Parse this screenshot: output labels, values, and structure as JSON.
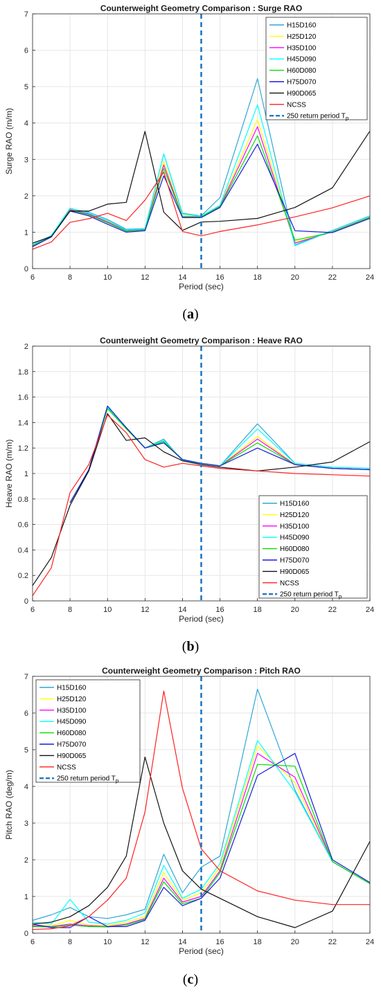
{
  "series_colors": {
    "H15D160": "#2ea7d6",
    "H25D120": "#ffff00",
    "H35D100": "#ff00ff",
    "H45D090": "#00ffff",
    "H60D080": "#00e000",
    "H75D070": "#1a1adc",
    "H90D065": "#111111",
    "NCSS": "#ff2020"
  },
  "reference_line": {
    "x": 15,
    "color": "#1f77c4"
  },
  "chart_data": [
    {
      "type": "line",
      "panel_label": "(a)",
      "title": "Counterweight Geometry Comparison : Surge RAO",
      "xlabel": "Period (sec)",
      "ylabel": "Surge RAO (m/m)",
      "xlim": [
        6,
        24
      ],
      "ylim": [
        0,
        7
      ],
      "xticks": [
        6,
        8,
        10,
        12,
        14,
        16,
        18,
        20,
        22,
        24
      ],
      "yticks": [
        0,
        1,
        2,
        3,
        4,
        5,
        6,
        7
      ],
      "legend_position": "top-right",
      "grid": true,
      "reference_label": "250 return period T",
      "reference_label_sub": "p",
      "series": [
        {
          "name": "H15D160",
          "x": [
            6,
            7,
            8,
            9,
            10,
            11,
            12,
            13,
            14,
            15,
            16,
            18,
            20,
            22,
            24
          ],
          "y": [
            0.65,
            0.9,
            1.65,
            1.55,
            1.35,
            1.08,
            1.1,
            3.15,
            1.52,
            1.45,
            1.95,
            5.22,
            0.65,
            1.05,
            1.45
          ]
        },
        {
          "name": "H25D120",
          "x": [
            6,
            7,
            8,
            9,
            10,
            11,
            12,
            13,
            14,
            15,
            16,
            18,
            20,
            22,
            24
          ],
          "y": [
            0.64,
            0.9,
            1.63,
            1.5,
            1.3,
            1.05,
            1.08,
            2.95,
            1.45,
            1.45,
            1.72,
            4.1,
            0.72,
            1.02,
            1.42
          ]
        },
        {
          "name": "H35D100",
          "x": [
            6,
            7,
            8,
            9,
            10,
            11,
            12,
            13,
            14,
            15,
            16,
            18,
            20,
            22,
            24
          ],
          "y": [
            0.63,
            0.89,
            1.62,
            1.5,
            1.28,
            1.04,
            1.07,
            2.85,
            1.43,
            1.43,
            1.71,
            3.9,
            0.7,
            1.01,
            1.41
          ]
        },
        {
          "name": "H45D090",
          "x": [
            6,
            7,
            8,
            9,
            10,
            11,
            12,
            13,
            14,
            15,
            16,
            18,
            20,
            22,
            24
          ],
          "y": [
            0.66,
            0.91,
            1.66,
            1.52,
            1.32,
            1.06,
            1.09,
            3.15,
            1.5,
            1.44,
            1.74,
            4.5,
            0.63,
            1.04,
            1.44
          ]
        },
        {
          "name": "H60D080",
          "x": [
            6,
            7,
            8,
            9,
            10,
            11,
            12,
            13,
            14,
            15,
            16,
            18,
            20,
            22,
            24
          ],
          "y": [
            0.62,
            0.88,
            1.6,
            1.48,
            1.26,
            1.03,
            1.06,
            2.75,
            1.42,
            1.42,
            1.7,
            3.65,
            0.78,
            1.0,
            1.4
          ]
        },
        {
          "name": "H75D070",
          "x": [
            6,
            7,
            8,
            9,
            10,
            11,
            12,
            13,
            14,
            15,
            16,
            18,
            20,
            22,
            24
          ],
          "y": [
            0.6,
            0.87,
            1.58,
            1.45,
            1.22,
            1.0,
            1.04,
            2.55,
            1.4,
            1.4,
            1.68,
            3.42,
            1.04,
            0.99,
            1.38
          ]
        },
        {
          "name": "H90D065",
          "x": [
            6,
            7,
            8,
            9,
            10,
            11,
            12,
            13,
            14,
            15,
            16,
            18,
            20,
            22,
            24
          ],
          "y": [
            0.7,
            0.88,
            1.58,
            1.58,
            1.77,
            1.82,
            3.77,
            1.55,
            1.05,
            1.28,
            1.3,
            1.38,
            1.68,
            2.22,
            3.78
          ]
        },
        {
          "name": "NCSS",
          "x": [
            6,
            7,
            8,
            9,
            10,
            11,
            12,
            13,
            14,
            15,
            16,
            18,
            20,
            22,
            24
          ],
          "y": [
            0.53,
            0.73,
            1.27,
            1.37,
            1.52,
            1.32,
            1.88,
            2.65,
            1.02,
            0.9,
            1.02,
            1.2,
            1.42,
            1.67,
            2.0
          ]
        }
      ]
    },
    {
      "type": "line",
      "panel_label": "(b)",
      "title": "Counterweight Geometry Comparison : Heave RAO",
      "xlabel": "Period (sec)",
      "ylabel": "Heave RAO (m/m)",
      "xlim": [
        6,
        24
      ],
      "ylim": [
        0,
        2
      ],
      "xticks": [
        6,
        8,
        10,
        12,
        14,
        16,
        18,
        20,
        22,
        24
      ],
      "yticks": [
        0,
        0.2,
        0.4,
        0.6,
        0.8,
        1,
        1.2,
        1.4,
        1.6,
        1.8,
        2
      ],
      "legend_position": "bottom-right",
      "grid": true,
      "reference_label": "250 return period T",
      "reference_label_sub": "p",
      "series": [
        {
          "name": "H15D160",
          "x": [
            8,
            9,
            10,
            11,
            12,
            13,
            14,
            15,
            16,
            18,
            20,
            22,
            24
          ],
          "y": [
            0.77,
            1.03,
            1.52,
            1.36,
            1.2,
            1.27,
            1.1,
            1.08,
            1.06,
            1.39,
            1.08,
            1.05,
            1.04
          ]
        },
        {
          "name": "H25D120",
          "x": [
            8,
            9,
            10,
            11,
            12,
            13,
            14,
            15,
            16,
            18,
            20,
            22,
            24
          ],
          "y": [
            0.77,
            1.03,
            1.51,
            1.36,
            1.2,
            1.25,
            1.11,
            1.08,
            1.06,
            1.29,
            1.07,
            1.04,
            1.03
          ]
        },
        {
          "name": "H35D100",
          "x": [
            8,
            9,
            10,
            11,
            12,
            13,
            14,
            15,
            16,
            18,
            20,
            22,
            24
          ],
          "y": [
            0.77,
            1.03,
            1.51,
            1.36,
            1.2,
            1.25,
            1.11,
            1.08,
            1.06,
            1.27,
            1.07,
            1.04,
            1.03
          ]
        },
        {
          "name": "H45D090",
          "x": [
            8,
            9,
            10,
            11,
            12,
            13,
            14,
            15,
            16,
            18,
            20,
            22,
            24
          ],
          "y": [
            0.77,
            1.03,
            1.52,
            1.36,
            1.2,
            1.26,
            1.1,
            1.08,
            1.06,
            1.35,
            1.08,
            1.05,
            1.04
          ]
        },
        {
          "name": "H60D080",
          "x": [
            8,
            9,
            10,
            11,
            12,
            13,
            14,
            15,
            16,
            18,
            20,
            22,
            24
          ],
          "y": [
            0.77,
            1.03,
            1.51,
            1.35,
            1.2,
            1.25,
            1.11,
            1.08,
            1.06,
            1.24,
            1.07,
            1.04,
            1.03
          ]
        },
        {
          "name": "H75D070",
          "x": [
            8,
            9,
            10,
            11,
            12,
            13,
            14,
            15,
            16,
            18,
            20,
            22,
            24
          ],
          "y": [
            0.77,
            1.03,
            1.53,
            1.36,
            1.2,
            1.24,
            1.11,
            1.08,
            1.06,
            1.2,
            1.07,
            1.04,
            1.03
          ]
        },
        {
          "name": "H90D065",
          "x": [
            6,
            7,
            8,
            9,
            10,
            11,
            12,
            13,
            14,
            15,
            16,
            18,
            20,
            22,
            24
          ],
          "y": [
            0.12,
            0.34,
            0.75,
            1.02,
            1.47,
            1.26,
            1.28,
            1.17,
            1.1,
            1.07,
            1.05,
            1.02,
            1.05,
            1.09,
            1.25
          ]
        },
        {
          "name": "NCSS",
          "x": [
            6,
            7,
            8,
            9,
            10,
            11,
            12,
            13,
            14,
            15,
            16,
            18,
            20,
            22,
            24
          ],
          "y": [
            0.04,
            0.26,
            0.85,
            1.07,
            1.46,
            1.32,
            1.11,
            1.05,
            1.08,
            1.06,
            1.04,
            1.02,
            1.0,
            0.99,
            0.98
          ]
        }
      ]
    },
    {
      "type": "line",
      "panel_label": "(c)",
      "title": "Counterweight Geometry Comparison : Pitch RAO",
      "xlabel": "Period (sec)",
      "ylabel": "Pitch RAO (deg/m)",
      "xlim": [
        6,
        24
      ],
      "ylim": [
        0,
        7
      ],
      "xticks": [
        6,
        8,
        10,
        12,
        14,
        16,
        18,
        20,
        22,
        24
      ],
      "yticks": [
        0,
        1,
        2,
        3,
        4,
        5,
        6,
        7
      ],
      "legend_position": "top-left",
      "grid": true,
      "reference_label": "250 return period T",
      "reference_label_sub": "p",
      "series": [
        {
          "name": "H15D160",
          "x": [
            6,
            7,
            8,
            9,
            10,
            11,
            12,
            13,
            14,
            15,
            16,
            18,
            20,
            22,
            24
          ],
          "y": [
            0.35,
            0.5,
            0.7,
            0.45,
            0.4,
            0.5,
            0.65,
            2.15,
            1.1,
            1.8,
            2.1,
            6.65,
            3.9,
            1.95,
            1.35
          ]
        },
        {
          "name": "H25D120",
          "x": [
            6,
            7,
            8,
            9,
            10,
            11,
            12,
            13,
            14,
            15,
            16,
            18,
            20,
            22,
            24
          ],
          "y": [
            0.22,
            0.2,
            0.35,
            0.22,
            0.2,
            0.3,
            0.45,
            1.65,
            0.9,
            1.1,
            1.8,
            5.1,
            4.1,
            1.95,
            1.35
          ]
        },
        {
          "name": "H35D100",
          "x": [
            6,
            7,
            8,
            9,
            10,
            11,
            12,
            13,
            14,
            15,
            16,
            18,
            20,
            22,
            24
          ],
          "y": [
            0.2,
            0.18,
            0.25,
            0.2,
            0.18,
            0.25,
            0.4,
            1.5,
            0.85,
            1.0,
            1.7,
            4.9,
            4.25,
            1.95,
            1.35
          ]
        },
        {
          "name": "H45D090",
          "x": [
            6,
            7,
            8,
            9,
            10,
            11,
            12,
            13,
            14,
            15,
            16,
            18,
            20,
            22,
            24
          ],
          "y": [
            0.3,
            0.25,
            0.92,
            0.3,
            0.25,
            0.35,
            0.55,
            1.85,
            0.95,
            1.2,
            1.9,
            5.25,
            3.85,
            1.95,
            1.35
          ]
        },
        {
          "name": "H60D080",
          "x": [
            6,
            7,
            8,
            9,
            10,
            11,
            12,
            13,
            14,
            15,
            16,
            18,
            20,
            22,
            24
          ],
          "y": [
            0.18,
            0.17,
            0.22,
            0.18,
            0.17,
            0.22,
            0.38,
            1.4,
            0.8,
            0.95,
            1.65,
            4.6,
            4.55,
            1.95,
            1.35
          ]
        },
        {
          "name": "H75D070",
          "x": [
            6,
            7,
            8,
            9,
            10,
            11,
            12,
            13,
            14,
            15,
            16,
            18,
            20,
            22,
            24
          ],
          "y": [
            0.25,
            0.15,
            0.15,
            0.45,
            0.18,
            0.18,
            0.35,
            1.25,
            0.75,
            0.95,
            1.5,
            4.3,
            4.9,
            2.0,
            1.38
          ]
        },
        {
          "name": "H90D065",
          "x": [
            6,
            7,
            8,
            9,
            10,
            11,
            12,
            13,
            14,
            15,
            16,
            18,
            20,
            22,
            24
          ],
          "y": [
            0.25,
            0.3,
            0.45,
            0.75,
            1.25,
            2.1,
            4.8,
            3.0,
            1.7,
            1.2,
            0.95,
            0.45,
            0.15,
            0.6,
            2.5
          ]
        },
        {
          "name": "NCSS",
          "x": [
            6,
            7,
            8,
            9,
            10,
            11,
            12,
            13,
            14,
            15,
            16,
            18,
            20,
            22,
            24
          ],
          "y": [
            0.1,
            0.12,
            0.2,
            0.45,
            0.9,
            1.5,
            3.3,
            6.6,
            3.95,
            2.3,
            1.7,
            1.15,
            0.9,
            0.78,
            0.78
          ]
        }
      ]
    }
  ]
}
